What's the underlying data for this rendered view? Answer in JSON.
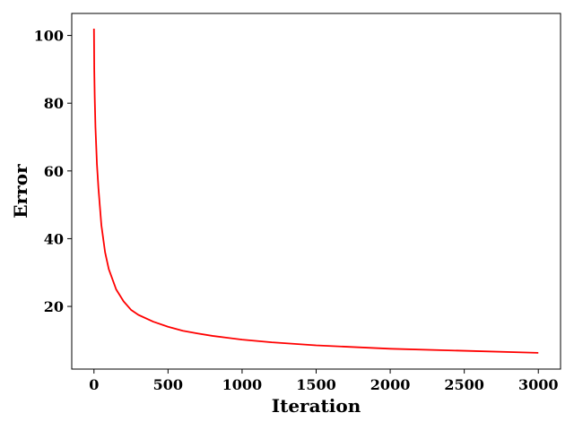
{
  "chart_data": {
    "type": "line",
    "title": "",
    "xlabel": "Iteration",
    "ylabel": "Error",
    "xlim": [
      -150,
      3150
    ],
    "ylim": [
      1.5,
      106.5
    ],
    "xticks": [
      0,
      500,
      1000,
      1500,
      2000,
      2500,
      3000
    ],
    "yticks": [
      20,
      40,
      60,
      80,
      100
    ],
    "grid": false,
    "series": [
      {
        "color": "#ff0000",
        "x": [
          0,
          2,
          5,
          10,
          20,
          30,
          50,
          75,
          100,
          150,
          200,
          250,
          300,
          400,
          500,
          600,
          700,
          800,
          1000,
          1200,
          1500,
          2000,
          2500,
          3000
        ],
        "y": [
          102,
          90,
          82,
          73,
          62,
          55,
          44,
          36,
          31,
          25,
          21.5,
          19,
          17.5,
          15.5,
          14,
          12.8,
          12,
          11.3,
          10.2,
          9.4,
          8.5,
          7.5,
          6.9,
          6.3
        ]
      }
    ]
  }
}
